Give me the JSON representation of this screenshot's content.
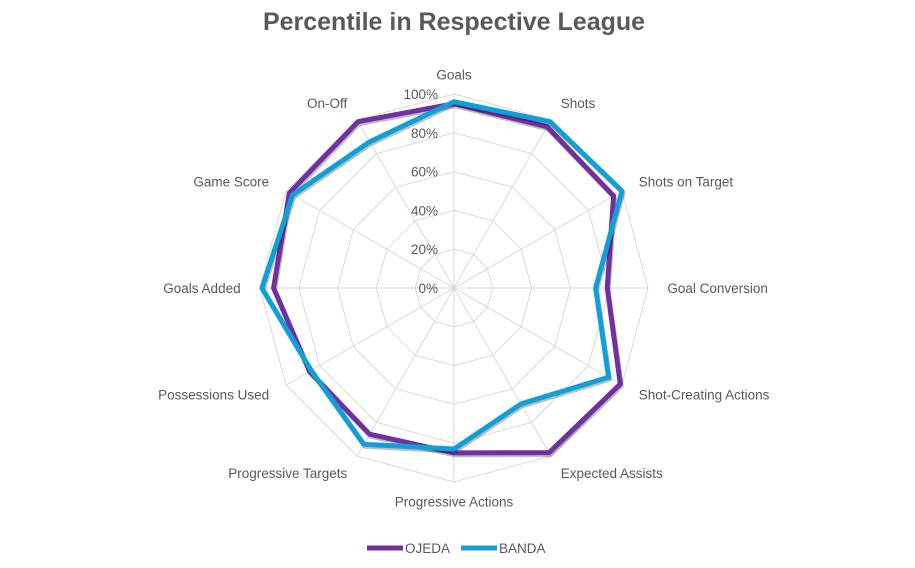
{
  "chart_data": {
    "type": "radar",
    "title": "Percentile in Respective League",
    "categories": [
      "Goals",
      "Shots",
      "Shots on Target",
      "Goal Conversion",
      "Shot-Creating Actions",
      "Expected Assists",
      "Progressive Actions",
      "Progressive Targets",
      "Possessions Used",
      "Goals Added",
      "Game Score",
      "On-Off"
    ],
    "axis": {
      "min": 0,
      "max": 100,
      "ticks": [
        0,
        20,
        40,
        60,
        80,
        100
      ],
      "tick_labels": [
        "0%",
        "20%",
        "40%",
        "60%",
        "80%",
        "100%"
      ]
    },
    "legend_position": "bottom",
    "series": [
      {
        "name": "OJEDA",
        "color": "#7030A0",
        "values": [
          95,
          96,
          95,
          79,
          99,
          98,
          85,
          87,
          86,
          93,
          98,
          99
        ]
      },
      {
        "name": "BANDA",
        "color": "#10A0D8",
        "values": [
          96,
          99,
          100,
          73,
          92,
          69,
          83,
          93,
          85,
          99,
          96,
          87
        ]
      }
    ]
  }
}
